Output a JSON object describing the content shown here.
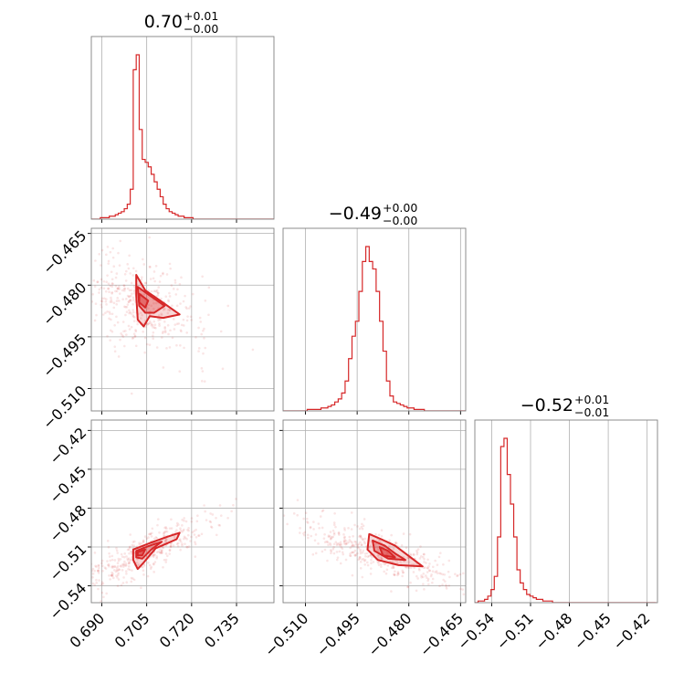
{
  "chart_data": {
    "type": "corner",
    "color": "#d62728",
    "parameters": [
      {
        "median": "0.70",
        "plus": "+0.01",
        "minus": "−0.00",
        "range": [
          0.6865,
          0.7475
        ],
        "ticks": [
          0.69,
          0.705,
          0.72,
          0.735
        ],
        "tick_labels": [
          "0.690",
          "0.705",
          "0.720",
          "0.735"
        ]
      },
      {
        "median": "−0.49",
        "plus": "+0.00",
        "minus": "−0.00",
        "range": [
          -0.5165,
          -0.4635
        ],
        "ticks": [
          -0.51,
          -0.495,
          -0.48,
          -0.465
        ],
        "tick_labels": [
          "−0.510",
          "−0.495",
          "−0.480",
          "−0.465"
        ]
      },
      {
        "median": "−0.52",
        "plus": "+0.01",
        "minus": "−0.01",
        "range": [
          -0.553,
          -0.412
        ],
        "ticks": [
          -0.54,
          -0.51,
          -0.48,
          -0.45,
          -0.42
        ],
        "tick_labels": [
          "−0.54",
          "−0.51",
          "−0.48",
          "−0.45",
          "−0.42"
        ]
      }
    ],
    "histograms": [
      {
        "edges_start": 0.6865,
        "bin_width": 0.001,
        "counts": [
          0,
          0,
          0,
          1,
          1,
          1,
          2,
          2,
          3,
          4,
          5,
          7,
          10,
          20,
          100,
          110,
          60,
          40,
          38,
          35,
          30,
          25,
          20,
          15,
          10,
          7,
          5,
          4,
          3,
          2,
          2,
          1,
          1,
          1,
          0,
          0,
          0,
          0,
          0,
          0,
          0,
          0,
          0,
          0,
          0,
          0,
          0,
          0,
          0,
          0,
          0,
          0,
          0,
          0,
          0,
          0,
          0,
          0,
          0,
          0,
          0
        ]
      },
      {
        "edges_start": -0.5165,
        "bin_width": 0.001,
        "counts": [
          0,
          0,
          0,
          0,
          0,
          0,
          0,
          1,
          1,
          1,
          1,
          2,
          2,
          3,
          4,
          6,
          8,
          12,
          20,
          35,
          50,
          60,
          80,
          100,
          110,
          100,
          95,
          80,
          60,
          40,
          20,
          10,
          6,
          5,
          4,
          3,
          2,
          2,
          1,
          1,
          1,
          0,
          0,
          0,
          0,
          0,
          0,
          0,
          0,
          0,
          0,
          0,
          0
        ]
      },
      {
        "edges_start": -0.553,
        "bin_width": 0.0025,
        "counts": [
          0,
          1,
          1,
          2,
          4,
          8,
          16,
          40,
          95,
          100,
          78,
          60,
          40,
          20,
          12,
          8,
          5,
          4,
          3,
          2,
          2,
          1,
          1,
          1,
          0,
          0,
          0,
          0,
          0,
          0,
          0,
          0,
          0,
          0,
          0,
          0,
          0,
          0,
          0,
          0,
          0,
          0,
          0,
          0,
          0,
          0,
          0,
          0,
          0,
          0,
          0,
          0,
          0,
          0,
          0,
          0
        ]
      }
    ],
    "scatter_2d": [
      {
        "x_param": 0,
        "y_param": 1,
        "center": [
          0.7027,
          -0.4855
        ],
        "contours": [
          [
            [
              0.7015,
              -0.477
            ],
            [
              0.7045,
              -0.4815
            ],
            [
              0.7095,
              -0.4845
            ],
            [
              0.716,
              -0.4885
            ],
            [
              0.7105,
              -0.4895
            ],
            [
              0.706,
              -0.489
            ],
            [
              0.704,
              -0.492
            ],
            [
              0.702,
              -0.49
            ],
            [
              0.7015,
              -0.483
            ]
          ],
          [
            [
              0.702,
              -0.4805
            ],
            [
              0.706,
              -0.483
            ],
            [
              0.711,
              -0.486
            ],
            [
              0.7075,
              -0.488
            ],
            [
              0.7045,
              -0.488
            ],
            [
              0.7025,
              -0.486
            ]
          ],
          [
            [
              0.7025,
              -0.4825
            ],
            [
              0.7055,
              -0.4845
            ],
            [
              0.7045,
              -0.4865
            ],
            [
              0.7025,
              -0.485
            ]
          ]
        ]
      },
      {
        "x_param": 0,
        "y_param": 2,
        "center": [
          0.703,
          -0.516
        ],
        "contours": [
          [
            [
              0.7005,
              -0.512
            ],
            [
              0.706,
              -0.507
            ],
            [
              0.712,
              -0.502
            ],
            [
              0.716,
              -0.499
            ],
            [
              0.715,
              -0.504
            ],
            [
              0.708,
              -0.511
            ],
            [
              0.704,
              -0.522
            ],
            [
              0.702,
              -0.527
            ],
            [
              0.7005,
              -0.52
            ]
          ],
          [
            [
              0.7015,
              -0.513
            ],
            [
              0.706,
              -0.509
            ],
            [
              0.71,
              -0.506
            ],
            [
              0.7065,
              -0.512
            ],
            [
              0.7035,
              -0.519
            ],
            [
              0.7015,
              -0.518
            ]
          ],
          [
            [
              0.702,
              -0.514
            ],
            [
              0.7045,
              -0.512
            ],
            [
              0.7035,
              -0.5165
            ],
            [
              0.702,
              -0.5165
            ]
          ]
        ]
      },
      {
        "x_param": 1,
        "y_param": 2,
        "center": [
          -0.489,
          -0.515
        ],
        "contours": [
          [
            [
              -0.4915,
              -0.5
            ],
            [
              -0.488,
              -0.504
            ],
            [
              -0.484,
              -0.509
            ],
            [
              -0.48,
              -0.517
            ],
            [
              -0.476,
              -0.525
            ],
            [
              -0.483,
              -0.524
            ],
            [
              -0.489,
              -0.52
            ],
            [
              -0.492,
              -0.512
            ]
          ],
          [
            [
              -0.4905,
              -0.505
            ],
            [
              -0.487,
              -0.509
            ],
            [
              -0.484,
              -0.515
            ],
            [
              -0.481,
              -0.52
            ],
            [
              -0.486,
              -0.519
            ],
            [
              -0.49,
              -0.513
            ]
          ],
          [
            [
              -0.4885,
              -0.51
            ],
            [
              -0.486,
              -0.513
            ],
            [
              -0.484,
              -0.518
            ],
            [
              -0.4875,
              -0.5165
            ]
          ]
        ]
      }
    ]
  }
}
